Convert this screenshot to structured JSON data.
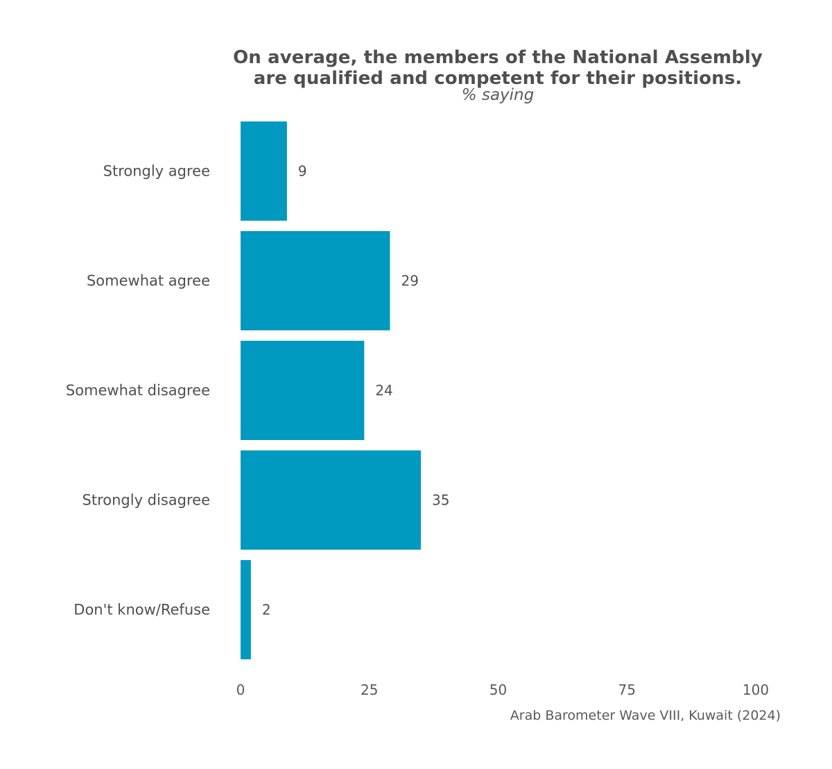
{
  "chart_data": {
    "type": "bar",
    "orientation": "horizontal",
    "title_line1": "On average, the members of the National Assembly",
    "title_line2": "are qualified and competent for their positions.",
    "subtitle": "% saying",
    "categories": [
      "Strongly agree",
      "Somewhat agree",
      "Somewhat disagree",
      "Strongly disagree",
      "Don't know/Refuse"
    ],
    "values": [
      9,
      29,
      24,
      35,
      2
    ],
    "xlim": [
      0,
      100
    ],
    "xticks": [
      "0",
      "25",
      "50",
      "75",
      "100"
    ],
    "xtick_values": [
      0,
      25,
      50,
      75,
      100
    ],
    "grid": false,
    "bar_color": "#0099c0",
    "source": "Arab Barometer Wave VIII, Kuwait (2024)"
  }
}
